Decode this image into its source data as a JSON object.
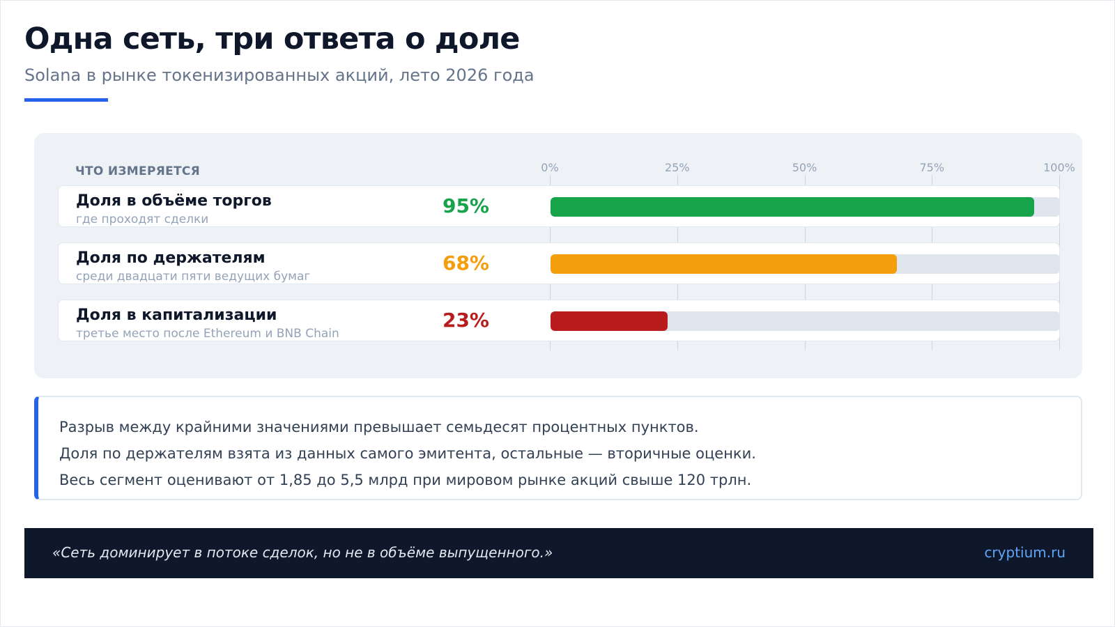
{
  "header": {
    "title": "Одна сеть, три ответа о доле",
    "subtitle": "Solana в рынке токенизированных акций, лето 2026 года"
  },
  "chart_data": {
    "type": "bar",
    "orientation": "horizontal",
    "column_header": "ЧТО ИЗМЕРЯЕТСЯ",
    "xlim": [
      0,
      100
    ],
    "ticks": [
      "0%",
      "25%",
      "50%",
      "75%",
      "100%"
    ],
    "tick_values": [
      0,
      25,
      50,
      75,
      100
    ],
    "grid": true,
    "rows": [
      {
        "label": "Доля в объёме торгов",
        "sublabel": "где проходят сделки",
        "value": 95,
        "value_label": "95%",
        "color": "#16a34a"
      },
      {
        "label": "Доля по держателям",
        "sublabel": "среди двадцати пяти ведущих бумаг",
        "value": 68,
        "value_label": "68%",
        "color": "#f59e0b"
      },
      {
        "label": "Доля в капитализации",
        "sublabel": "третье место после Ethereum и BNB Chain",
        "value": 23,
        "value_label": "23%",
        "color": "#b91c1c"
      }
    ]
  },
  "notes": {
    "lines": [
      "Разрыв между крайними значениями превышает семьдесят процентных пунктов.",
      "Доля по держателям взята из данных самого эмитента, остальные — вторичные оценки.",
      "Весь сегмент оценивают от 1,85 до 5,5 млрд при мировом рынке акций свыше 120 трлн."
    ],
    "accent_color": "#2563eb"
  },
  "footer": {
    "quote": "«Сеть доминирует в потоке сделок, но не в объёме выпущенного.»",
    "link": "cryptium.ru"
  }
}
